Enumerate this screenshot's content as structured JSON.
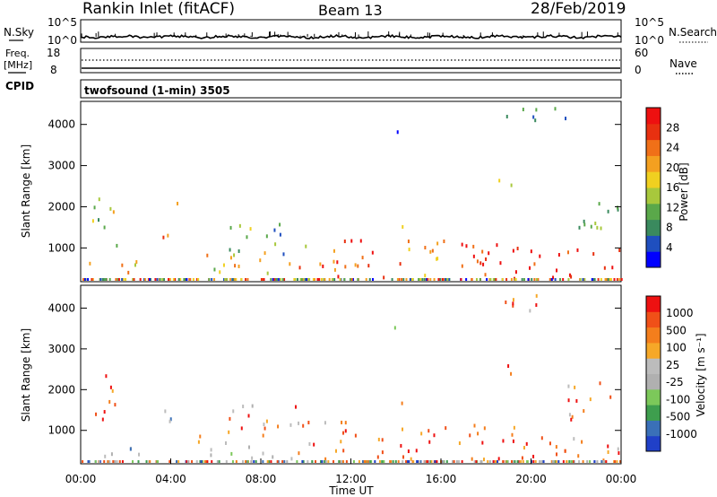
{
  "header": {
    "station": "Rankin Inlet (fitACF)",
    "beam": "Beam 13",
    "date": "28/Feb/2019"
  },
  "noise_panel": {
    "left_label": "N.Sky",
    "right_label": "N.Search",
    "left_ticks": [
      "10^5",
      "10^0"
    ],
    "right_ticks": [
      "10^5",
      "10^0"
    ]
  },
  "freq_panel": {
    "left_label_1": "Freq.",
    "left_label_2": "[MHz]",
    "right_label": "Nave",
    "left_ticks": [
      "18",
      "8"
    ],
    "right_ticks": [
      "60",
      "0"
    ],
    "cpid_label": "CPID"
  },
  "mode_label": "twofsound (1-min) 3505",
  "time_axis": {
    "label": "Time UT",
    "ticks": [
      "00:00",
      "04:00",
      "08:00",
      "12:00",
      "16:00",
      "20:00",
      "00:00"
    ]
  },
  "colors": {
    "power": [
      "#0000ff",
      "#1f4fbf",
      "#3a8a5e",
      "#5aa84a",
      "#a8c83c",
      "#f0d020",
      "#f4a020",
      "#f07018",
      "#e83010",
      "#ee1010"
    ],
    "velocity": [
      "#ee1111",
      "#f05018",
      "#f47e1c",
      "#f6a828",
      "#bcbcbc",
      "#b0b0b0",
      "#7cc85a",
      "#3e9e4e",
      "#3a70b8",
      "#2040c8"
    ]
  },
  "chart_data": [
    {
      "type": "heatmap",
      "title": "",
      "ylabel": "Slant Range [km]",
      "xlabel": "",
      "x_range": [
        0,
        24
      ],
      "ylim": [
        180,
        4560
      ],
      "yticks": [
        "1000",
        "2000",
        "3000",
        "4000"
      ],
      "colorbar_label": "Power [dB]",
      "colorbar_ticks": [
        "4",
        "8",
        "12",
        "16",
        "20",
        "24",
        "28"
      ],
      "blobs": [
        {
          "t0": 0.3,
          "t1": 1.6,
          "r0": 1050,
          "r1": 2350,
          "level": 0.5
        },
        {
          "t0": 0.3,
          "t1": 2.8,
          "r0": 300,
          "r1": 700,
          "level": 0.65
        },
        {
          "t0": 3.6,
          "t1": 4.4,
          "r0": 1200,
          "r1": 2100,
          "level": 0.7
        },
        {
          "t0": 5.0,
          "t1": 8.8,
          "r0": 250,
          "r1": 900,
          "level": 0.6
        },
        {
          "t0": 6.5,
          "t1": 10.0,
          "r0": 800,
          "r1": 1600,
          "level": 0.35
        },
        {
          "t0": 9.0,
          "t1": 13.2,
          "r0": 250,
          "r1": 1200,
          "level": 0.8
        },
        {
          "t0": 13.8,
          "t1": 14.3,
          "r0": 3500,
          "r1": 3950,
          "level": 0.25
        },
        {
          "t0": 14.2,
          "t1": 14.6,
          "r0": 1350,
          "r1": 1900,
          "level": 0.45
        },
        {
          "t0": 13.2,
          "t1": 18.0,
          "r0": 250,
          "r1": 1200,
          "level": 0.75
        },
        {
          "t0": 18.5,
          "t1": 19.3,
          "r0": 2200,
          "r1": 2650,
          "level": 0.45
        },
        {
          "t0": 17.8,
          "t1": 23.9,
          "r0": 250,
          "r1": 1100,
          "level": 0.9
        },
        {
          "t0": 21.5,
          "t1": 23.9,
          "r0": 1200,
          "r1": 2200,
          "level": 0.4
        },
        {
          "t0": 18.8,
          "t1": 21.5,
          "r0": 3800,
          "r1": 4400,
          "level": 0.3
        }
      ]
    },
    {
      "type": "heatmap",
      "title": "",
      "ylabel": "Slant Range [km]",
      "xlabel": "Time UT",
      "x_range": [
        0,
        24
      ],
      "ylim": [
        180,
        4560
      ],
      "yticks": [
        "1000",
        "2000",
        "3000",
        "4000"
      ],
      "colorbar_label": "Velocity [m s⁻¹]",
      "colorbar_ticks": [
        "1000",
        "500",
        "100",
        "25",
        "-25",
        "-100",
        "-500",
        "-1000"
      ],
      "blobs": [
        {
          "t0": 0.3,
          "t1": 1.6,
          "r0": 1050,
          "r1": 2350,
          "level": 0.2
        },
        {
          "t0": 0.3,
          "t1": 2.8,
          "r0": 300,
          "r1": 700,
          "level": 0.6
        },
        {
          "t0": 3.6,
          "t1": 4.4,
          "r0": 1200,
          "r1": 2100,
          "level": 0.65
        },
        {
          "t0": 5.0,
          "t1": 8.8,
          "r0": 250,
          "r1": 900,
          "level": 0.45
        },
        {
          "t0": 6.5,
          "t1": 10.0,
          "r0": 800,
          "r1": 1600,
          "level": 0.3
        },
        {
          "t0": 9.0,
          "t1": 13.2,
          "r0": 250,
          "r1": 1200,
          "level": 0.25
        },
        {
          "t0": 13.8,
          "t1": 14.3,
          "r0": 3500,
          "r1": 3950,
          "level": 0.5
        },
        {
          "t0": 14.2,
          "t1": 14.6,
          "r0": 1350,
          "r1": 1900,
          "level": 0.2
        },
        {
          "t0": 13.2,
          "t1": 18.0,
          "r0": 250,
          "r1": 1200,
          "level": 0.2
        },
        {
          "t0": 18.5,
          "t1": 19.3,
          "r0": 2200,
          "r1": 2650,
          "level": 0.25
        },
        {
          "t0": 17.8,
          "t1": 23.9,
          "r0": 250,
          "r1": 1100,
          "level": 0.2
        },
        {
          "t0": 21.5,
          "t1": 23.9,
          "r0": 1200,
          "r1": 2200,
          "level": 0.25
        },
        {
          "t0": 18.8,
          "t1": 21.5,
          "r0": 3800,
          "r1": 4400,
          "level": 0.25
        }
      ]
    }
  ]
}
